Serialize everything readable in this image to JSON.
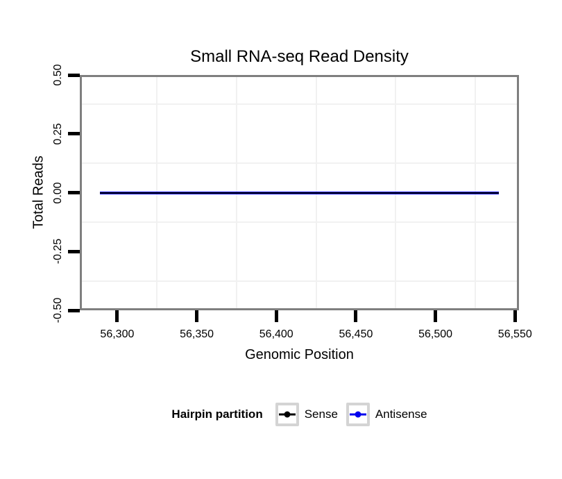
{
  "chart_data": {
    "type": "line",
    "title": "Small RNA-seq Read Density",
    "xlabel": "Genomic Position",
    "ylabel": "Total Reads",
    "xlim": [
      56276.5,
      56552.5
    ],
    "ylim": [
      -0.5,
      0.5
    ],
    "x_ticks": [
      {
        "value": 56300,
        "label": "56,300"
      },
      {
        "value": 56350,
        "label": "56,350"
      },
      {
        "value": 56400,
        "label": "56,400"
      },
      {
        "value": 56450,
        "label": "56,450"
      },
      {
        "value": 56500,
        "label": "56,500"
      },
      {
        "value": 56550,
        "label": "56,550"
      }
    ],
    "y_ticks": [
      {
        "value": 0.5,
        "label": "0.50"
      },
      {
        "value": 0.25,
        "label": "0.25"
      },
      {
        "value": 0.0,
        "label": "0.00"
      },
      {
        "value": -0.25,
        "label": "-0.25"
      },
      {
        "value": -0.5,
        "label": "-0.50"
      }
    ],
    "grid": {
      "minor_gridlines_only": true,
      "color": "#F1F1F1"
    },
    "panel_border_color": "#7F7F7F",
    "series": [
      {
        "name": "Sense",
        "color": "#000000",
        "points": [
          [
            56289,
            0
          ],
          [
            56540,
            0
          ]
        ],
        "x_start": 56289,
        "x_end": 56540,
        "constant_value": 0
      },
      {
        "name": "Antisense",
        "color": "#0000EE",
        "points": [
          [
            56289,
            0
          ],
          [
            56540,
            0
          ]
        ],
        "x_start": 56289,
        "x_end": 56540,
        "constant_value": 0
      }
    ],
    "legend": {
      "title": "Hairpin partition",
      "position": "bottom",
      "entries": [
        {
          "label": "Sense",
          "color": "#000000"
        },
        {
          "label": "Antisense",
          "color": "#0000EE"
        }
      ]
    }
  }
}
